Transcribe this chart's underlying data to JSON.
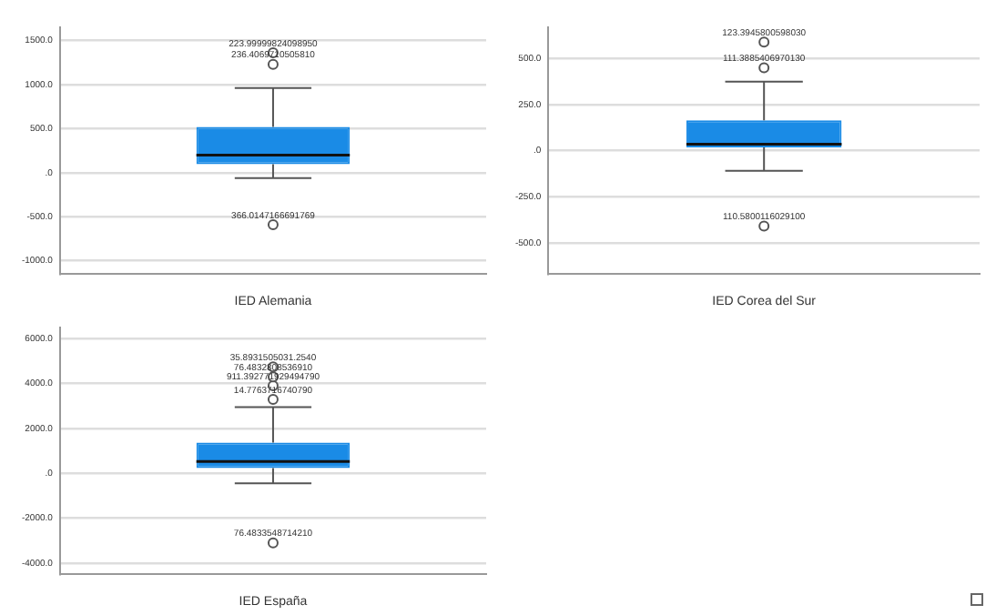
{
  "chart_data": [
    {
      "type": "box",
      "categories": [
        "IED Alemania"
      ],
      "color": "#1a8be6",
      "grid": "y",
      "ylim": [
        -1150,
        1650
      ],
      "yticks": [
        {
          "value": -1000,
          "label": "-1000.0"
        },
        {
          "value": -500,
          "label": "-500.0"
        },
        {
          "value": 0,
          "label": ".0"
        },
        {
          "value": 500,
          "label": "500.0"
        },
        {
          "value": 1000,
          "label": "1000.0"
        },
        {
          "value": 1500,
          "label": "1500.0"
        }
      ],
      "boxes": [
        {
          "low": -60,
          "q1": 95,
          "median": 200,
          "q3": 520,
          "high": 960,
          "outliers": [
            1360,
            1230,
            -590
          ]
        }
      ],
      "annotations": [
        "223.99999824098950",
        "236.4069710505810",
        "366.0147166691769"
      ]
    },
    {
      "type": "box",
      "categories": [
        "IED Corea del Sur"
      ],
      "color": "#1a8be6",
      "grid": "y",
      "ylim": [
        -670,
        670
      ],
      "yticks": [
        {
          "value": -500,
          "label": "-500.0"
        },
        {
          "value": -250,
          "label": "-250.0"
        },
        {
          "value": 0,
          "label": ".0"
        },
        {
          "value": 250,
          "label": "250.0"
        },
        {
          "value": 500,
          "label": "500.0"
        }
      ],
      "boxes": [
        {
          "low": -110,
          "q1": 18,
          "median": 35,
          "q3": 165,
          "high": 375,
          "outliers": [
            590,
            450,
            -410
          ]
        }
      ],
      "annotations": [
        "123.3945800598030",
        "111.3885406970130",
        "110.5800116029100"
      ]
    },
    {
      "type": "box",
      "categories": [
        "IED España"
      ],
      "color": "#1a8be6",
      "grid": "y",
      "ylim": [
        -4500,
        6500
      ],
      "yticks": [
        {
          "value": -4000,
          "label": "-4000.0"
        },
        {
          "value": -2000,
          "label": "-2000.0"
        },
        {
          "value": 0,
          "label": ".0"
        },
        {
          "value": 2000,
          "label": "2000.0"
        },
        {
          "value": 4000,
          "label": "4000.0"
        },
        {
          "value": 6000,
          "label": "6000.0"
        }
      ],
      "boxes": [
        {
          "low": -450,
          "q1": 230,
          "median": 530,
          "q3": 1370,
          "high": 2950,
          "outliers": [
            4750,
            4300,
            3900,
            3300,
            -3100
          ]
        }
      ],
      "annotations": [
        "35.8931505031.2540",
        "76.4832808536910",
        "911.392771929494790",
        "14.7763716740790",
        "76.4833548714210"
      ]
    }
  ]
}
